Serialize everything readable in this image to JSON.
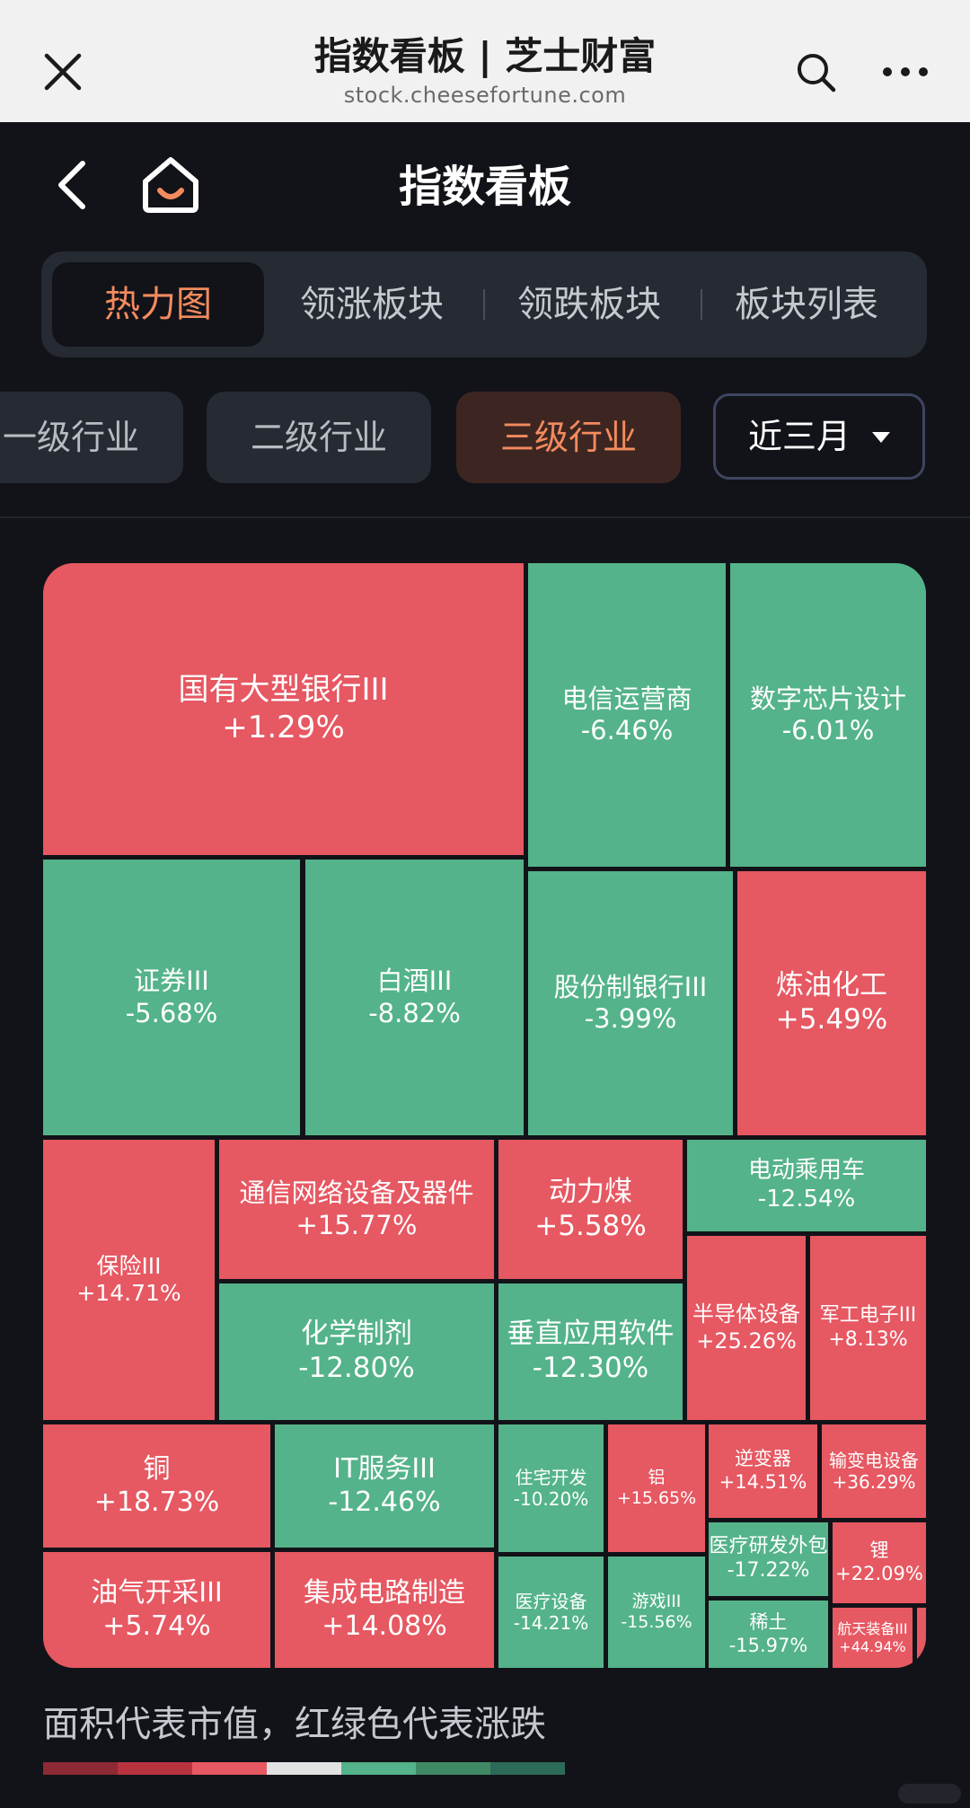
{
  "browser": {
    "title": "指数看板 | 芝士财富",
    "url": "stock.cheesefortune.com",
    "close_icon": "close-icon",
    "search_icon": "search-icon",
    "more_icon": "more-horizontal-icon"
  },
  "header": {
    "title": "指数看板",
    "back_icon": "chevron-left-icon",
    "home_icon": "home-icon"
  },
  "tabs": [
    {
      "label": "热力图",
      "active": true
    },
    {
      "label": "领涨板块",
      "active": false
    },
    {
      "label": "领跌板块",
      "active": false
    },
    {
      "label": "板块列表",
      "active": false
    }
  ],
  "levels": [
    {
      "label": "一级行业",
      "active": false
    },
    {
      "label": "二级行业",
      "active": false
    },
    {
      "label": "三级行业",
      "active": true
    }
  ],
  "period": {
    "label": "近三月",
    "caret_icon": "caret-down-icon"
  },
  "treemap": {
    "colors": {
      "up": "#e65862",
      "down": "#54b38a"
    },
    "cells": [
      {
        "name": "国有大型银行III",
        "change": "+1.29%"
      },
      {
        "name": "电信运营商",
        "change": "-6.46%"
      },
      {
        "name": "数字芯片设计",
        "change": "-6.01%"
      },
      {
        "name": "证券III",
        "change": "-5.68%"
      },
      {
        "name": "白酒III",
        "change": "-8.82%"
      },
      {
        "name": "股份制银行III",
        "change": "-3.99%"
      },
      {
        "name": "炼油化工",
        "change": "+5.49%"
      },
      {
        "name": "保险III",
        "change": "+14.71%"
      },
      {
        "name": "通信网络设备及器件",
        "change": "+15.77%"
      },
      {
        "name": "动力煤",
        "change": "+5.58%"
      },
      {
        "name": "电动乘用车",
        "change": "-12.54%"
      },
      {
        "name": "化学制剂",
        "change": "-12.80%"
      },
      {
        "name": "垂直应用软件",
        "change": "-12.30%"
      },
      {
        "name": "半导体设备",
        "change": "+25.26%"
      },
      {
        "name": "军工电子III",
        "change": "+8.13%"
      },
      {
        "name": "铜",
        "change": "+18.73%"
      },
      {
        "name": "IT服务III",
        "change": "-12.46%"
      },
      {
        "name": "住宅开发",
        "change": "-10.20%"
      },
      {
        "name": "铝",
        "change": "+15.65%"
      },
      {
        "name": "逆变器",
        "change": "+14.51%"
      },
      {
        "name": "输变电设备",
        "change": "+36.29%"
      },
      {
        "name": "医疗研发外包",
        "change": "-17.22%"
      },
      {
        "name": "锂",
        "change": "+22.09%"
      },
      {
        "name": "油气开采III",
        "change": "+5.74%"
      },
      {
        "name": "集成电路制造",
        "change": "+14.08%"
      },
      {
        "name": "医疗设备",
        "change": "-14.21%"
      },
      {
        "name": "游戏III",
        "change": "-15.56%"
      },
      {
        "name": "稀土",
        "change": "-15.97%"
      },
      {
        "name": "航天装备III",
        "change": "+44.94%"
      }
    ]
  },
  "caption": "面积代表市值，红绿色代表涨跌",
  "legend_colors": [
    "#8e2a35",
    "#b8333e",
    "#e65862",
    "#e2e2e2",
    "#54b38a",
    "#3f8a64",
    "#2c6b57"
  ]
}
